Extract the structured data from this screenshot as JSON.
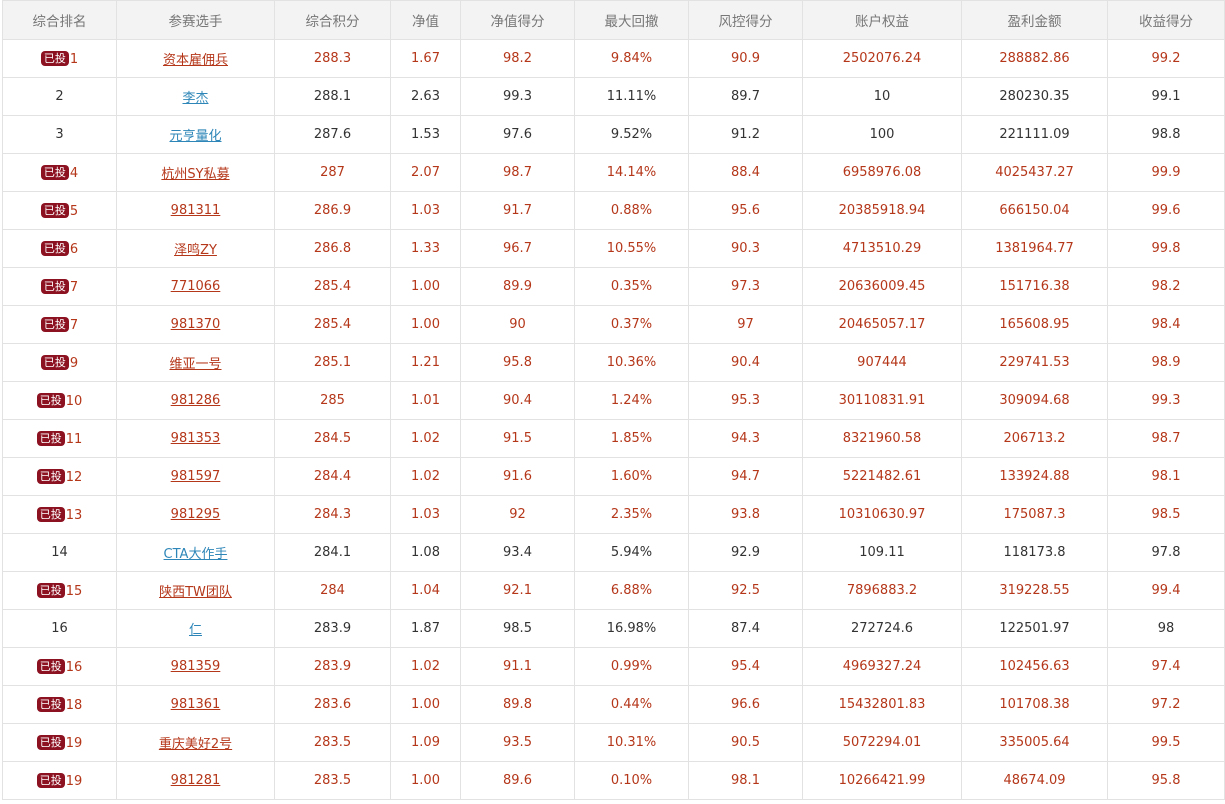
{
  "table": {
    "headers": [
      "综合排名",
      "参赛选手",
      "综合积分",
      "净值",
      "净值得分",
      "最大回撤",
      "风控得分",
      "账户权益",
      "盈利金额",
      "收益得分"
    ],
    "rows": [
      {
        "badge": "已投",
        "rank": "1",
        "name": "资本雇佣兵",
        "score": "288.3",
        "nav": "1.67",
        "nav_score": "98.2",
        "drawdown": "9.84%",
        "risk_score": "90.9",
        "equity": "2502076.24",
        "profit": "288882.86",
        "return_score": "99.2"
      },
      {
        "badge": "",
        "rank": "2",
        "name": "李杰",
        "score": "288.1",
        "nav": "2.63",
        "nav_score": "99.3",
        "drawdown": "11.11%",
        "risk_score": "89.7",
        "equity": "10",
        "profit": "280230.35",
        "return_score": "99.1"
      },
      {
        "badge": "",
        "rank": "3",
        "name": "元亨量化",
        "score": "287.6",
        "nav": "1.53",
        "nav_score": "97.6",
        "drawdown": "9.52%",
        "risk_score": "91.2",
        "equity": "100",
        "profit": "221111.09",
        "return_score": "98.8"
      },
      {
        "badge": "已投",
        "rank": "4",
        "name": "杭州SY私募",
        "score": "287",
        "nav": "2.07",
        "nav_score": "98.7",
        "drawdown": "14.14%",
        "risk_score": "88.4",
        "equity": "6958976.08",
        "profit": "4025437.27",
        "return_score": "99.9"
      },
      {
        "badge": "已投",
        "rank": "5",
        "name": "981311",
        "score": "286.9",
        "nav": "1.03",
        "nav_score": "91.7",
        "drawdown": "0.88%",
        "risk_score": "95.6",
        "equity": "20385918.94",
        "profit": "666150.04",
        "return_score": "99.6"
      },
      {
        "badge": "已投",
        "rank": "6",
        "name": "泽鸣ZY",
        "score": "286.8",
        "nav": "1.33",
        "nav_score": "96.7",
        "drawdown": "10.55%",
        "risk_score": "90.3",
        "equity": "4713510.29",
        "profit": "1381964.77",
        "return_score": "99.8"
      },
      {
        "badge": "已投",
        "rank": "7",
        "name": "771066",
        "score": "285.4",
        "nav": "1.00",
        "nav_score": "89.9",
        "drawdown": "0.35%",
        "risk_score": "97.3",
        "equity": "20636009.45",
        "profit": "151716.38",
        "return_score": "98.2"
      },
      {
        "badge": "已投",
        "rank": "7",
        "name": "981370",
        "score": "285.4",
        "nav": "1.00",
        "nav_score": "90",
        "drawdown": "0.37%",
        "risk_score": "97",
        "equity": "20465057.17",
        "profit": "165608.95",
        "return_score": "98.4"
      },
      {
        "badge": "已投",
        "rank": "9",
        "name": "维亚一号",
        "score": "285.1",
        "nav": "1.21",
        "nav_score": "95.8",
        "drawdown": "10.36%",
        "risk_score": "90.4",
        "equity": "907444",
        "profit": "229741.53",
        "return_score": "98.9"
      },
      {
        "badge": "已投",
        "rank": "10",
        "name": "981286",
        "score": "285",
        "nav": "1.01",
        "nav_score": "90.4",
        "drawdown": "1.24%",
        "risk_score": "95.3",
        "equity": "30110831.91",
        "profit": "309094.68",
        "return_score": "99.3"
      },
      {
        "badge": "已投",
        "rank": "11",
        "name": "981353",
        "score": "284.5",
        "nav": "1.02",
        "nav_score": "91.5",
        "drawdown": "1.85%",
        "risk_score": "94.3",
        "equity": "8321960.58",
        "profit": "206713.2",
        "return_score": "98.7"
      },
      {
        "badge": "已投",
        "rank": "12",
        "name": "981597",
        "score": "284.4",
        "nav": "1.02",
        "nav_score": "91.6",
        "drawdown": "1.60%",
        "risk_score": "94.7",
        "equity": "5221482.61",
        "profit": "133924.88",
        "return_score": "98.1"
      },
      {
        "badge": "已投",
        "rank": "13",
        "name": "981295",
        "score": "284.3",
        "nav": "1.03",
        "nav_score": "92",
        "drawdown": "2.35%",
        "risk_score": "93.8",
        "equity": "10310630.97",
        "profit": "175087.3",
        "return_score": "98.5"
      },
      {
        "badge": "",
        "rank": "14",
        "name": "CTA大作手",
        "score": "284.1",
        "nav": "1.08",
        "nav_score": "93.4",
        "drawdown": "5.94%",
        "risk_score": "92.9",
        "equity": "109.11",
        "profit": "118173.8",
        "return_score": "97.8"
      },
      {
        "badge": "已投",
        "rank": "15",
        "name": "陕西TW团队",
        "score": "284",
        "nav": "1.04",
        "nav_score": "92.1",
        "drawdown": "6.88%",
        "risk_score": "92.5",
        "equity": "7896883.2",
        "profit": "319228.55",
        "return_score": "99.4"
      },
      {
        "badge": "",
        "rank": "16",
        "name": "仁",
        "score": "283.9",
        "nav": "1.87",
        "nav_score": "98.5",
        "drawdown": "16.98%",
        "risk_score": "87.4",
        "equity": "272724.6",
        "profit": "122501.97",
        "return_score": "98"
      },
      {
        "badge": "已投",
        "rank": "16",
        "name": "981359",
        "score": "283.9",
        "nav": "1.02",
        "nav_score": "91.1",
        "drawdown": "0.99%",
        "risk_score": "95.4",
        "equity": "4969327.24",
        "profit": "102456.63",
        "return_score": "97.4"
      },
      {
        "badge": "已投",
        "rank": "18",
        "name": "981361",
        "score": "283.6",
        "nav": "1.00",
        "nav_score": "89.8",
        "drawdown": "0.44%",
        "risk_score": "96.6",
        "equity": "15432801.83",
        "profit": "101708.38",
        "return_score": "97.2"
      },
      {
        "badge": "已投",
        "rank": "19",
        "name": "重庆美好2号",
        "score": "283.5",
        "nav": "1.09",
        "nav_score": "93.5",
        "drawdown": "10.31%",
        "risk_score": "90.5",
        "equity": "5072294.01",
        "profit": "335005.64",
        "return_score": "99.5"
      },
      {
        "badge": "已投",
        "rank": "19",
        "name": "981281",
        "score": "283.5",
        "nav": "1.00",
        "nav_score": "89.6",
        "drawdown": "0.10%",
        "risk_score": "98.1",
        "equity": "10266421.99",
        "profit": "48674.09",
        "return_score": "95.8"
      }
    ]
  },
  "colors": {
    "invested_text": "#b5371a",
    "normal_text": "#333333",
    "link_blue": "#2e86b8",
    "badge_bg": "#8c1221",
    "header_bg": "#f3f3f3",
    "border": "#e2e2e2"
  }
}
